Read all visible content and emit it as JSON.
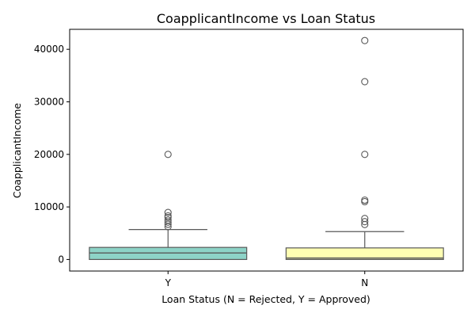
{
  "chart_data": {
    "type": "box",
    "title": "CoapplicantIncome vs Loan Status",
    "xlabel": "Loan Status (N = Rejected, Y = Approved)",
    "ylabel": "CoapplicantIncome",
    "categories": [
      "Y",
      "N"
    ],
    "ylim": [
      -2200,
      43800
    ],
    "yticks": [
      0,
      10000,
      20000,
      30000,
      40000
    ],
    "ytick_labels": [
      "0",
      "10000",
      "20000",
      "30000",
      "40000"
    ],
    "grid": false,
    "boxes": [
      {
        "category": "Y",
        "color": "#8dd3c7",
        "min": 0,
        "q1": 0,
        "median": 1240,
        "q3": 2300,
        "max": 5700,
        "outliers": [
          6250,
          6700,
          7100,
          7500,
          8000,
          8300,
          8950,
          20000
        ]
      },
      {
        "category": "N",
        "color": "#ffffb3",
        "min": 0,
        "q1": 0,
        "median": 270,
        "q3": 2200,
        "max": 5300,
        "outliers": [
          6650,
          7200,
          7800,
          11000,
          11300,
          20000,
          33840,
          41667
        ]
      }
    ],
    "colors": {
      "box_edge": "#595959",
      "outlier_edge": "#595959"
    }
  }
}
